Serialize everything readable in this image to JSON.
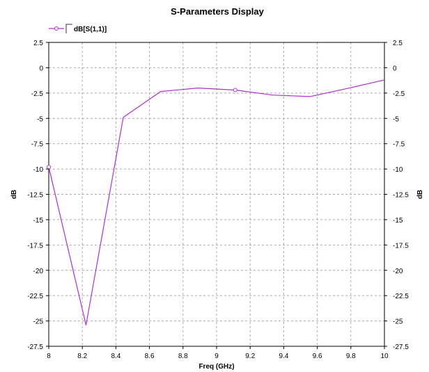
{
  "chart_data": {
    "type": "line",
    "title": "S-Parameters Display",
    "xlabel": "Freq (GHz)",
    "ylabel": "dB",
    "y2label": "dB",
    "xlim": [
      8,
      10
    ],
    "ylim": [
      -27.5,
      2.5
    ],
    "x_ticks": [
      "8",
      "8.2",
      "8.4",
      "8.6",
      "8.8",
      "9",
      "9.2",
      "9.4",
      "9.6",
      "9.8",
      "10"
    ],
    "y_ticks": [
      "2.5",
      "0",
      "-2.5",
      "-5",
      "-7.5",
      "-10",
      "-12.5",
      "-15",
      "-17.5",
      "-20",
      "-22.5",
      "-25",
      "-27.5"
    ],
    "grid": true,
    "legend_position": "top-left",
    "series": [
      {
        "name": "dB[S(1,1)]",
        "color": "#b12ed0",
        "x": [
          8.0,
          8.222,
          8.444,
          8.667,
          8.889,
          9.111,
          9.333,
          9.556,
          9.778,
          10.0
        ],
        "y": [
          -9.8,
          -25.4,
          -4.9,
          -2.35,
          -2.0,
          -2.2,
          -2.7,
          -2.85,
          -2.05,
          -1.2
        ],
        "markers": [
          {
            "x": 8.0,
            "y": -9.8
          },
          {
            "x": 9.111,
            "y": -2.2
          }
        ]
      }
    ]
  }
}
